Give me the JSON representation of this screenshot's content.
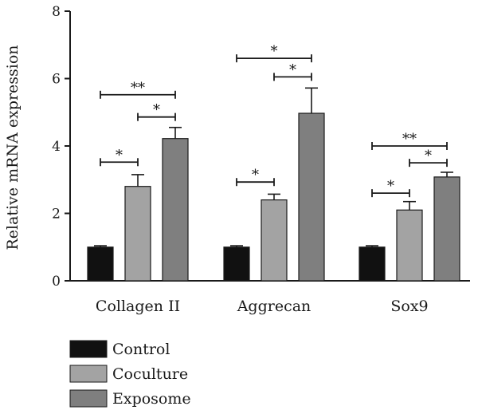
{
  "chart_data": {
    "type": "bar",
    "title": "",
    "xlabel": "",
    "ylabel": "Relative mRNA expression",
    "ylim": [
      0,
      8
    ],
    "yticks": [
      0,
      2,
      4,
      6,
      8
    ],
    "grid": false,
    "legend_position": "bottom-left",
    "categories": [
      "Collagen II",
      "Aggrecan",
      "Sox9"
    ],
    "series": [
      {
        "name": "Control",
        "color": "#111111",
        "values": [
          1.0,
          1.0,
          1.0
        ],
        "errors": [
          0.04,
          0.04,
          0.04
        ]
      },
      {
        "name": "Coculture",
        "color": "#a3a3a3",
        "values": [
          2.8,
          2.4,
          2.1
        ],
        "errors": [
          0.35,
          0.17,
          0.25
        ]
      },
      {
        "name": "Exposome",
        "color": "#7f7f7f",
        "values": [
          4.22,
          4.97,
          3.08
        ],
        "errors": [
          0.33,
          0.75,
          0.14
        ]
      }
    ],
    "significance": [
      {
        "category": 0,
        "from": 0,
        "to": 1,
        "y": 3.52,
        "label": "*"
      },
      {
        "category": 0,
        "from": 1,
        "to": 2,
        "y": 4.86,
        "label": "*"
      },
      {
        "category": 0,
        "from": 0,
        "to": 2,
        "y": 5.52,
        "label": "**"
      },
      {
        "category": 1,
        "from": 0,
        "to": 1,
        "y": 2.93,
        "label": "*"
      },
      {
        "category": 1,
        "from": 1,
        "to": 2,
        "y": 6.05,
        "label": "*"
      },
      {
        "category": 1,
        "from": 0,
        "to": 2,
        "y": 6.6,
        "label": "*"
      },
      {
        "category": 2,
        "from": 0,
        "to": 1,
        "y": 2.6,
        "label": "*"
      },
      {
        "category": 2,
        "from": 1,
        "to": 2,
        "y": 3.5,
        "label": "*"
      },
      {
        "category": 2,
        "from": 0,
        "to": 2,
        "y": 4.0,
        "label": "**"
      }
    ]
  }
}
